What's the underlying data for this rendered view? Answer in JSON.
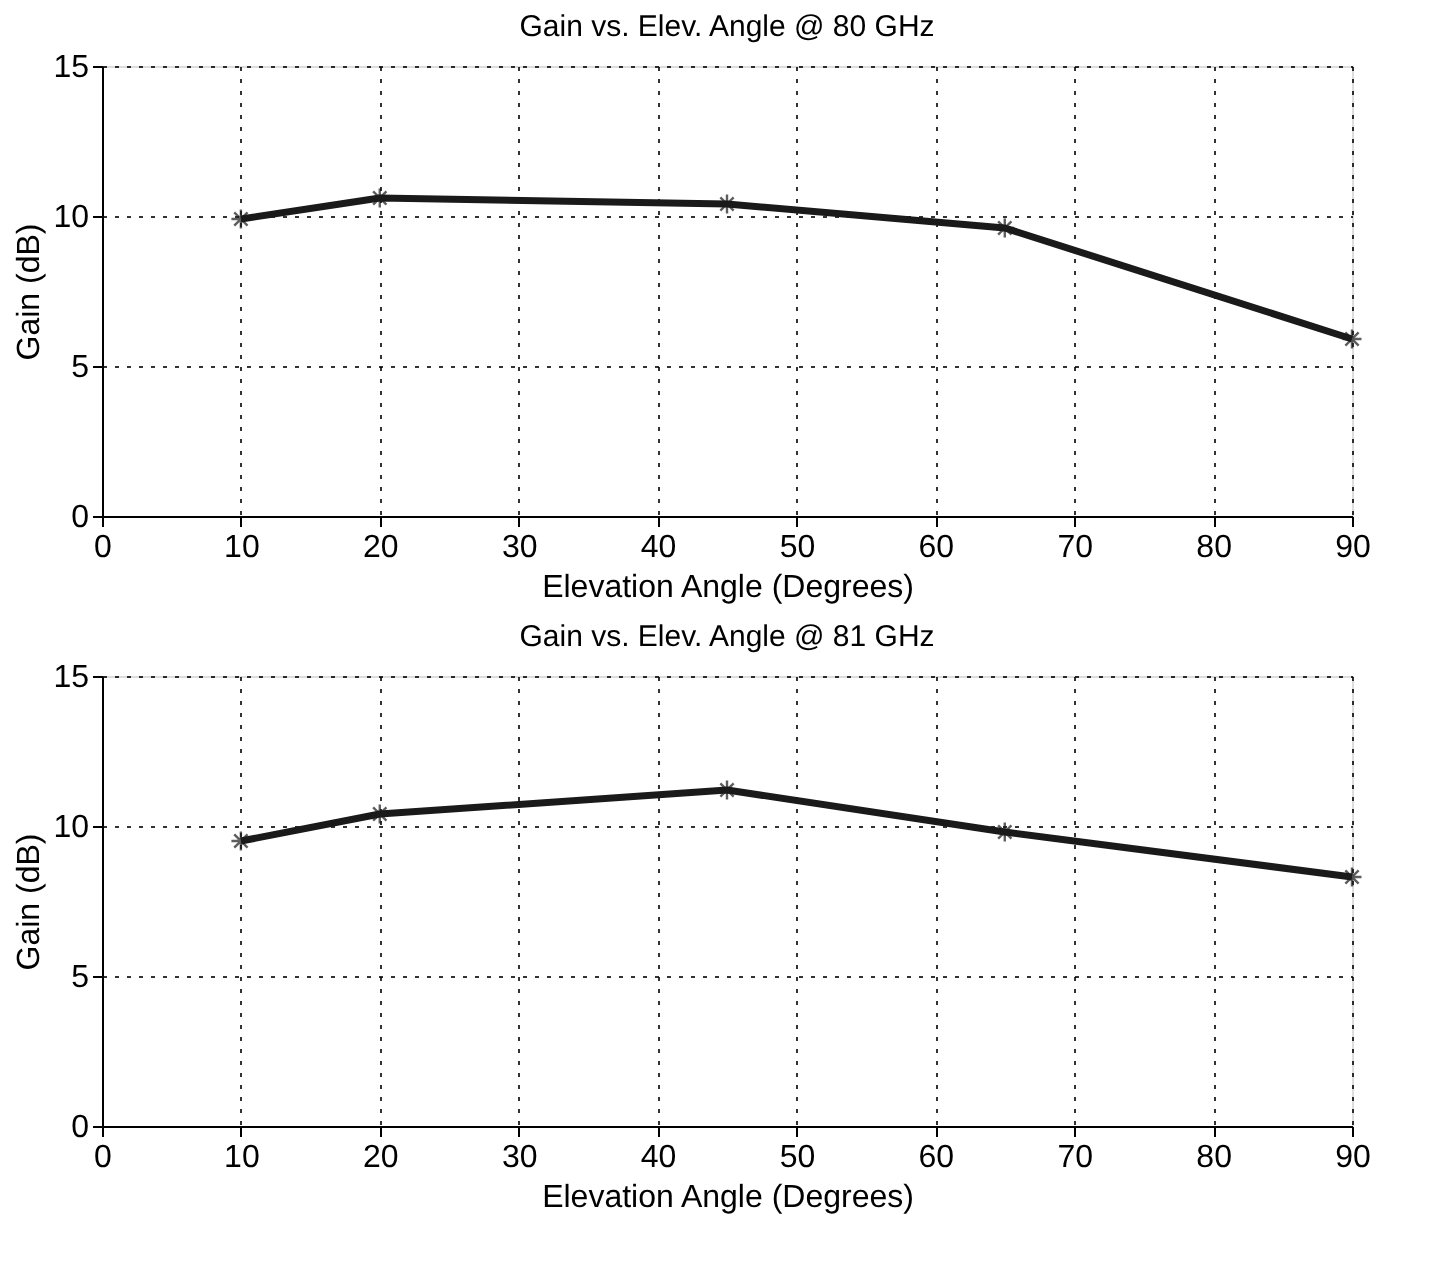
{
  "chart_data": [
    {
      "type": "line",
      "title": "Gain vs. Elev. Angle @ 80 GHz",
      "xlabel": "Elevation Angle (Degrees)",
      "ylabel": "Gain (dB)",
      "x": [
        10,
        20,
        45,
        65,
        90
      ],
      "series": [
        {
          "color": "#1a1a1a",
          "values": [
            9.9,
            10.6,
            10.4,
            9.6,
            5.9
          ]
        }
      ],
      "xlim": [
        0,
        90
      ],
      "xticks": [
        0,
        10,
        20,
        30,
        40,
        50,
        60,
        70,
        80,
        90
      ],
      "ylim": [
        0,
        15
      ],
      "yticks": [
        0,
        5,
        10,
        15
      ],
      "grid": true,
      "marker": "cross",
      "line_style": "solid"
    },
    {
      "type": "line",
      "title": "Gain vs. Elev. Angle @ 81 GHz",
      "xlabel": "Elevation Angle (Degrees)",
      "ylabel": "Gain (dB)",
      "x": [
        10,
        20,
        45,
        65,
        90
      ],
      "series": [
        {
          "color": "#1a1a1a",
          "values": [
            9.5,
            10.4,
            11.2,
            9.8,
            8.3
          ]
        }
      ],
      "xlim": [
        0,
        90
      ],
      "xticks": [
        0,
        10,
        20,
        30,
        40,
        50,
        60,
        70,
        80,
        90
      ],
      "ylim": [
        0,
        15
      ],
      "yticks": [
        0,
        5,
        10,
        15
      ],
      "grid": true,
      "marker": "cross",
      "line_style": "solid"
    }
  ]
}
